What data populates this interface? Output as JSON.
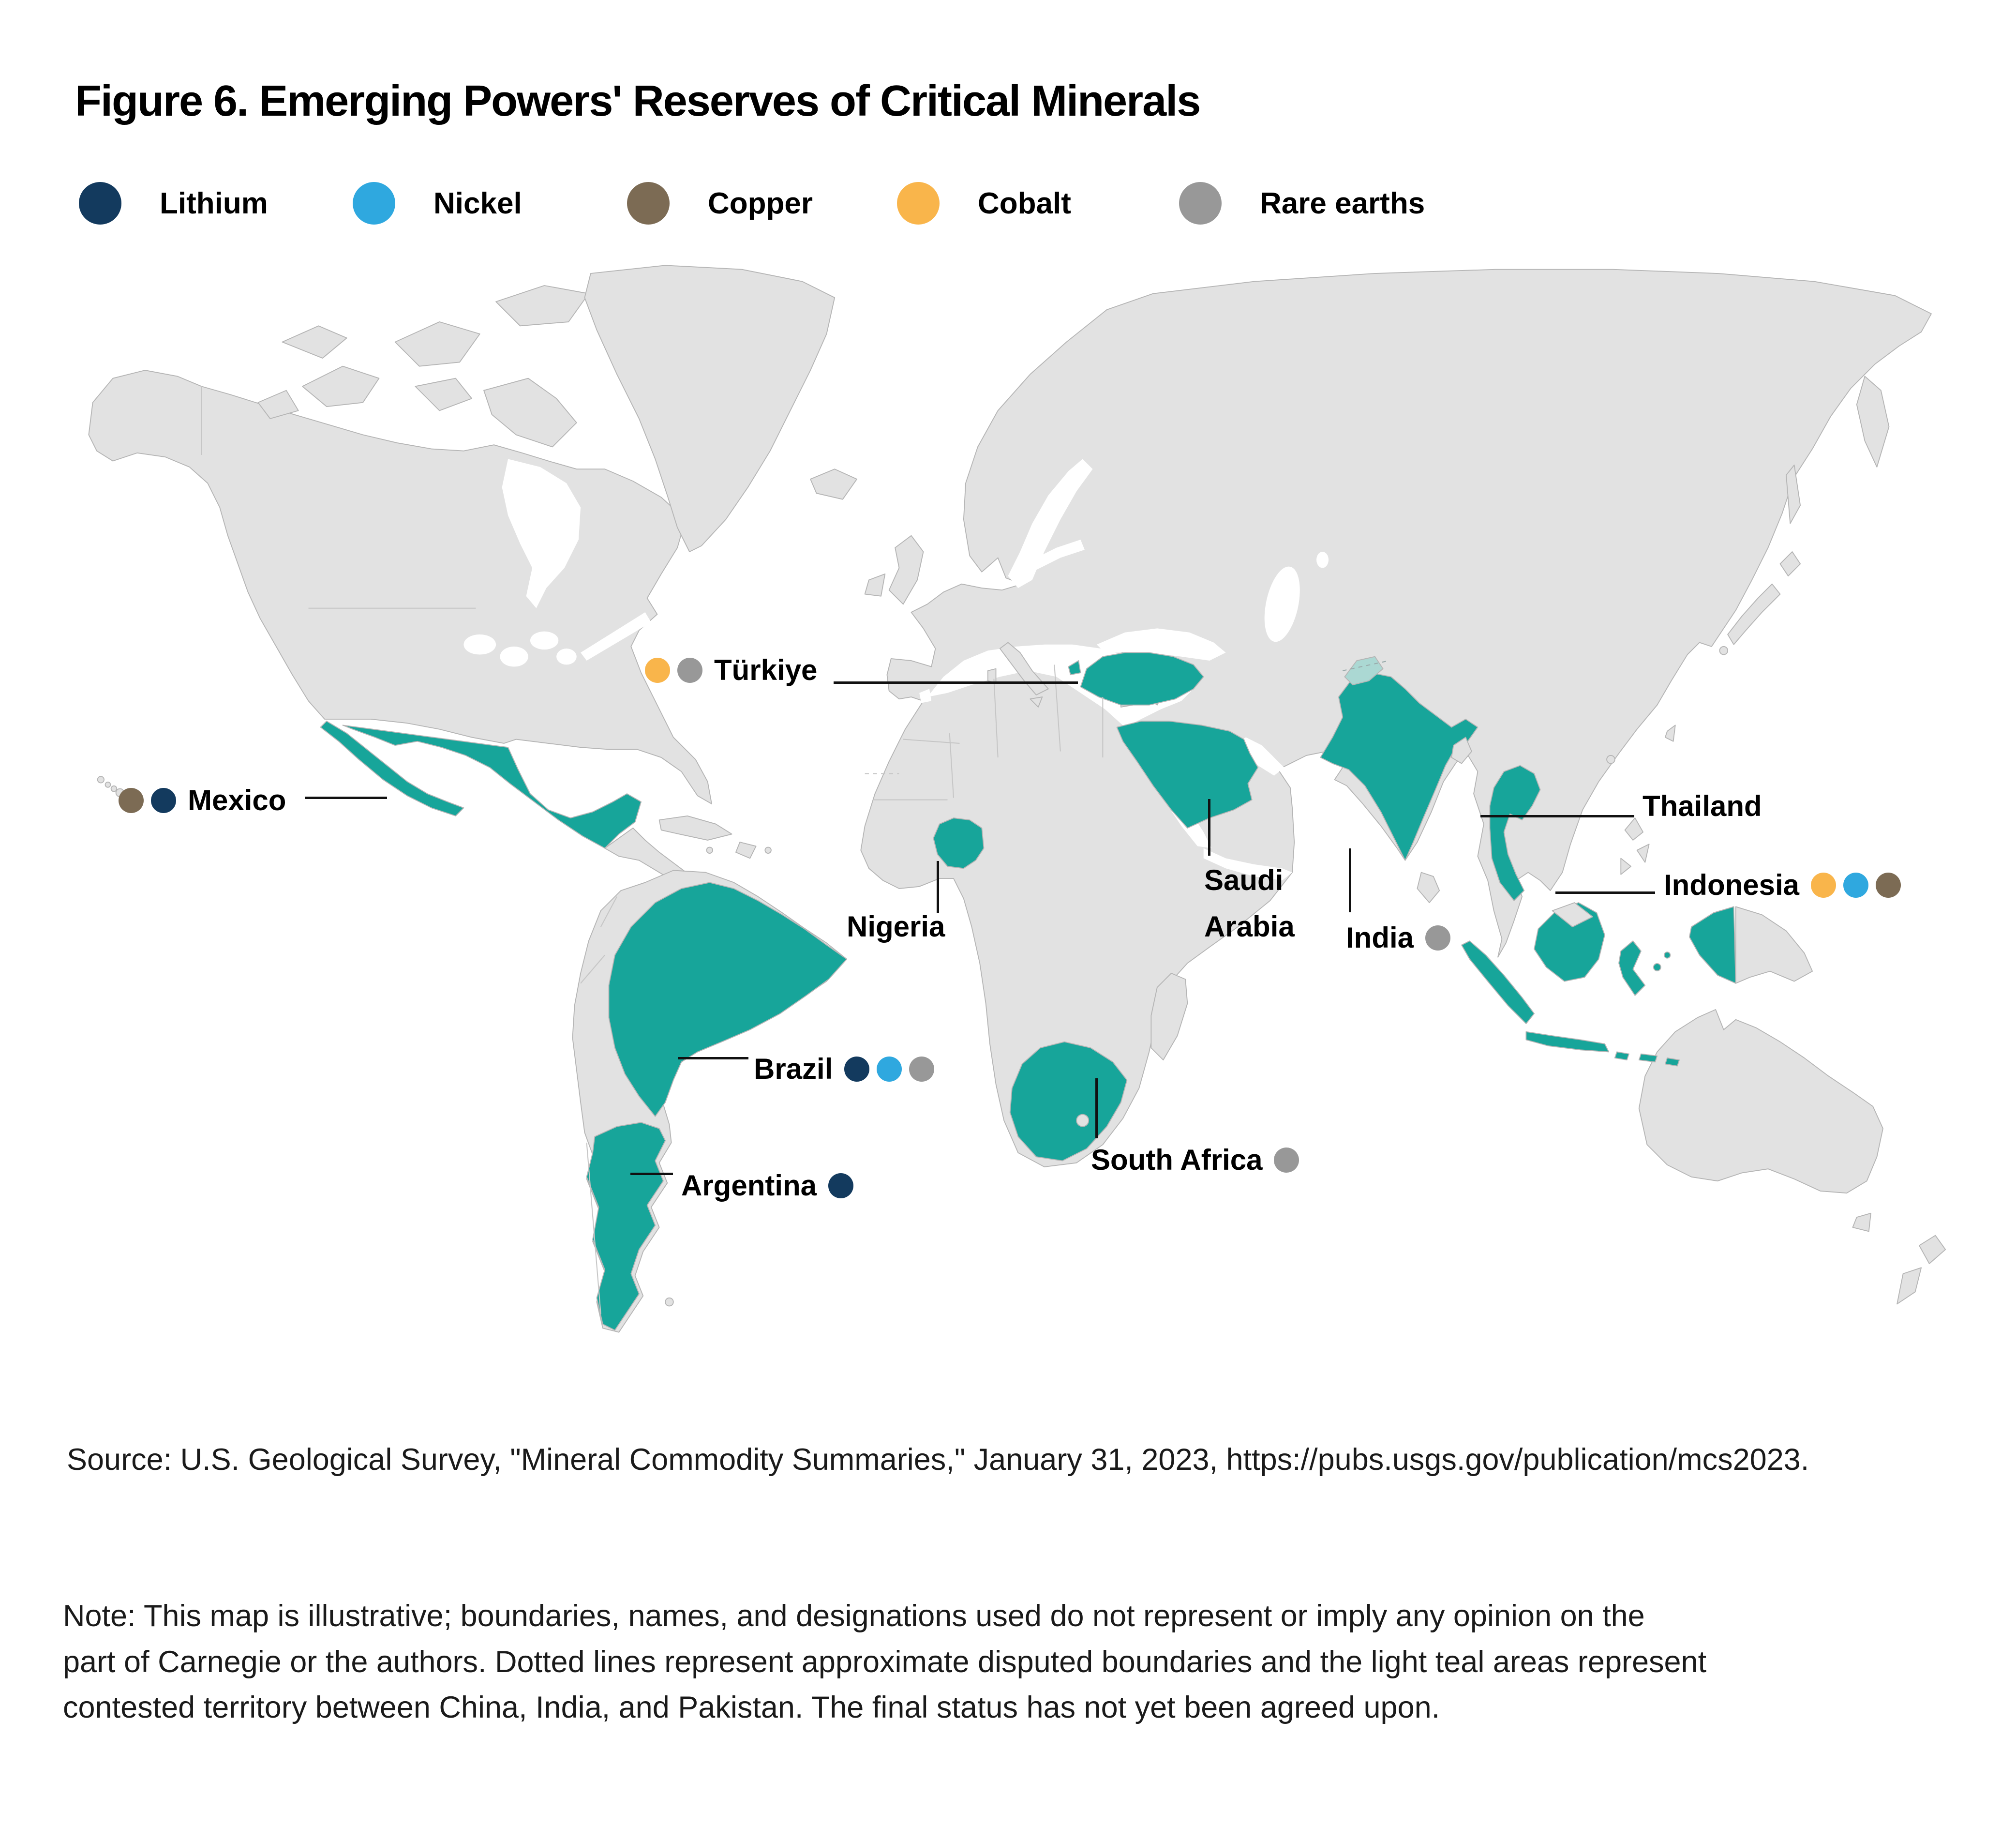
{
  "title": "Figure 6. Emerging Powers' Reserves of Critical Minerals",
  "colors": {
    "lithium": "#133A5E",
    "nickel": "#2FA8DF",
    "copper": "#7C6B54",
    "cobalt": "#F9B54B",
    "rare_earths": "#989898",
    "highlight_teal": "#17A59A",
    "contested_teal": "#ABD8D3",
    "land_gray": "#E2E2E2",
    "border_gray": "#B5B5B5"
  },
  "legend": {
    "items": [
      {
        "label": "Lithium",
        "mineral": "lithium"
      },
      {
        "label": "Nickel",
        "mineral": "nickel"
      },
      {
        "label": "Copper",
        "mineral": "copper"
      },
      {
        "label": "Cobalt",
        "mineral": "cobalt"
      },
      {
        "label": "Rare earths",
        "mineral": "rare_earths"
      }
    ]
  },
  "map": {
    "highlighted_countries": [
      "Mexico",
      "Brazil",
      "Argentina",
      "Nigeria",
      "South Africa",
      "Türkiye",
      "Saudi Arabia",
      "India",
      "Thailand",
      "Indonesia"
    ],
    "labels": {
      "mexico": {
        "name": "Mexico",
        "minerals": [
          "copper",
          "lithium"
        ]
      },
      "turkiye": {
        "name": "Türkiye",
        "minerals": [
          "cobalt",
          "rare_earths"
        ]
      },
      "brazil": {
        "name": "Brazil",
        "minerals": [
          "lithium",
          "nickel",
          "rare_earths"
        ]
      },
      "argentina": {
        "name": "Argentina",
        "minerals": [
          "lithium"
        ]
      },
      "nigeria": {
        "name": "Nigeria",
        "minerals": []
      },
      "saudi_arabia": {
        "name": "Saudi Arabia",
        "minerals": []
      },
      "india": {
        "name": "India",
        "minerals": [
          "rare_earths"
        ]
      },
      "south_africa": {
        "name": "South Africa",
        "minerals": [
          "rare_earths"
        ]
      },
      "thailand": {
        "name": "Thailand",
        "minerals": []
      },
      "indonesia": {
        "name": "Indonesia",
        "minerals": [
          "cobalt",
          "nickel",
          "copper"
        ]
      }
    }
  },
  "source": "Source: U.S. Geological Survey, \"Mineral Commodity Summaries,\" January 31, 2023, https://pubs.usgs.gov/publication/mcs2023.",
  "note_lines": [
    "Note: This map is illustrative; boundaries, names, and designations used do not represent or imply any opinion on the",
    "part of Carnegie or the authors. Dotted lines represent approximate disputed boundaries and the light teal areas represent",
    "contested territory between China, India, and Pakistan. The final status has not yet been agreed upon."
  ]
}
